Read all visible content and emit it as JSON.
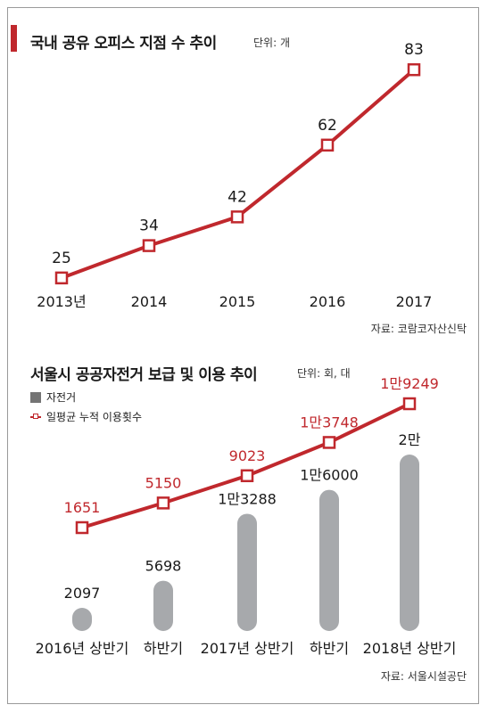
{
  "charts": {
    "top": {
      "title": "국내 공유 오피스 지점 수 추이",
      "unit": "단위: 개",
      "source": "자료: 코람코자산신탁"
    },
    "bottom": {
      "title": "서울시 공공자전거 보급 및 이용 추이",
      "unit": "단위: 회, 대",
      "legend": {
        "bar": "자전거",
        "line": "일평균 누적 이용횟수"
      },
      "source": "자료: 서울시설공단"
    }
  },
  "colors": {
    "accent": "#c0282d",
    "bar": "#a7a9ac",
    "legend_bar": "#747474"
  },
  "chart_data": [
    {
      "type": "line",
      "title": "국내 공유 오피스 지점 수 추이",
      "categories": [
        "2013년",
        "2014",
        "2015",
        "2016",
        "2017"
      ],
      "values": [
        25,
        34,
        42,
        62,
        83
      ],
      "labels": [
        "25",
        "34",
        "42",
        "62",
        "83"
      ],
      "ylim": [
        20,
        90
      ],
      "grid": false
    },
    {
      "type": "bar",
      "title": "서울시 공공자전거 보급 및 이용 추이",
      "categories": [
        "2016년 상반기",
        "하반기",
        "2017년 상반기",
        "하반기",
        "2018년 상반기"
      ],
      "series": [
        {
          "name": "자전거",
          "type": "bar",
          "values": [
            2097,
            5698,
            13288,
            16000,
            20000
          ],
          "labels": [
            "2097",
            "5698",
            "1만3288",
            "1만6000",
            "2만"
          ]
        },
        {
          "name": "일평균 누적 이용횟수",
          "type": "line",
          "values": [
            1651,
            5150,
            9023,
            13748,
            19249
          ],
          "labels": [
            "1651",
            "5150",
            "9023",
            "1만3748",
            "1만9249"
          ]
        }
      ],
      "legend": "top-left",
      "grid": false
    }
  ]
}
